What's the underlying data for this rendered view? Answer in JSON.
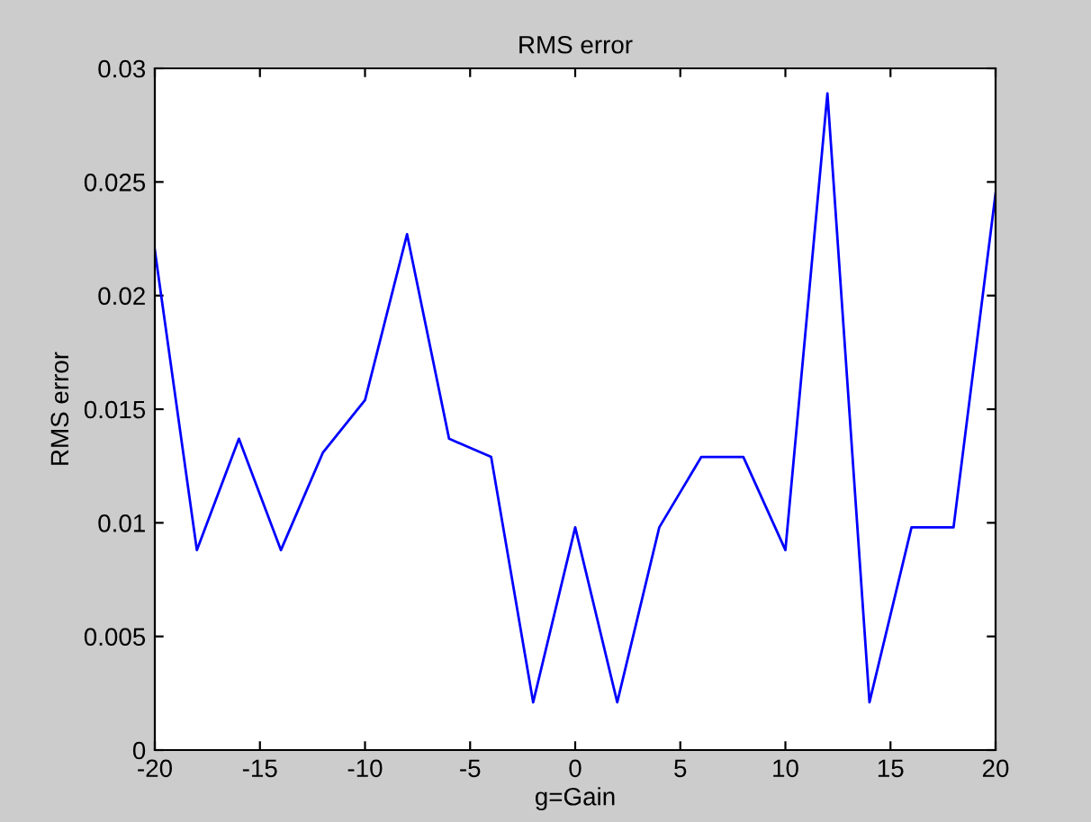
{
  "chart_data": {
    "type": "line",
    "title": "RMS error",
    "xlabel": "g=Gain",
    "ylabel": "RMS error",
    "x": [
      -20,
      -18,
      -16,
      -14,
      -12,
      -10,
      -8,
      -6,
      -4,
      -2,
      0,
      2,
      4,
      6,
      8,
      10,
      12,
      14,
      16,
      18,
      20
    ],
    "series": [
      {
        "color": "#0000ff",
        "values": [
          0.022,
          0.0088,
          0.0137,
          0.0088,
          0.0131,
          0.0154,
          0.0227,
          0.0137,
          0.0129,
          0.0021,
          0.0098,
          0.0021,
          0.0098,
          0.0129,
          0.0129,
          0.0088,
          0.0289,
          0.0021,
          0.0098,
          0.0098,
          0.0245
        ]
      }
    ],
    "xlim": [
      -20,
      20
    ],
    "xticks": [
      -20,
      -15,
      -10,
      -5,
      0,
      5,
      10,
      15,
      20
    ],
    "ylim": [
      0,
      0.03
    ],
    "yticks": [
      0,
      0.005,
      0.01,
      0.015,
      0.02,
      0.025,
      0.03
    ],
    "grid": false,
    "legend": false
  }
}
